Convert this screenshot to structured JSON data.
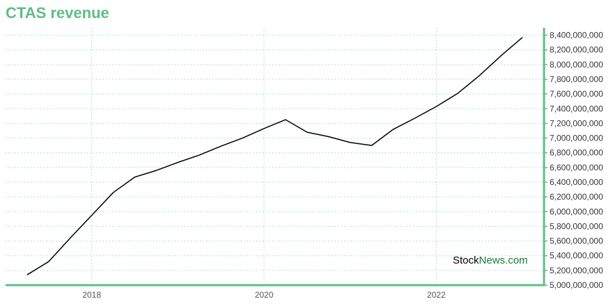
{
  "header": {
    "title": "CTAS revenue"
  },
  "watermark": {
    "part1": "Stock",
    "part2": "News",
    "part3": ".com"
  },
  "colors": {
    "accent": "#5cbf85",
    "line": "#000000",
    "grid": "#9fd9bd",
    "watermark_green": "#1a7a3a"
  },
  "chart_data": {
    "type": "line",
    "title": "CTAS revenue",
    "xlabel": "",
    "ylabel": "",
    "ylim": [
      5000000000,
      8500000000
    ],
    "xlim": [
      2017.0,
      2023.25
    ],
    "grid": true,
    "y_ticks": [
      5000000000,
      5200000000,
      5400000000,
      5600000000,
      5800000000,
      6000000000,
      6200000000,
      6400000000,
      6600000000,
      6800000000,
      7000000000,
      7200000000,
      7400000000,
      7600000000,
      7800000000,
      8000000000,
      8200000000,
      8400000000
    ],
    "y_tick_labels": [
      "5,000,000,000",
      "5,200,000,000",
      "5,400,000,000",
      "5,600,000,000",
      "5,800,000,000",
      "6,000,000,000",
      "6,200,000,000",
      "6,400,000,000",
      "6,600,000,000",
      "6,800,000,000",
      "7,000,000,000",
      "7,200,000,000",
      "7,400,000,000",
      "7,600,000,000",
      "7,800,000,000",
      "8,000,000,000",
      "8,200,000,000",
      "8,400,000,000"
    ],
    "x_ticks": [
      2018,
      2020,
      2022
    ],
    "x_tick_labels": [
      "2018",
      "2020",
      "2022"
    ],
    "series": [
      {
        "name": "",
        "x": [
          2017.25,
          2017.5,
          2017.75,
          2018.0,
          2018.25,
          2018.5,
          2018.75,
          2019.0,
          2019.25,
          2019.5,
          2019.75,
          2020.0,
          2020.25,
          2020.5,
          2020.75,
          2021.0,
          2021.25,
          2021.5,
          2021.75,
          2022.0,
          2022.25,
          2022.5,
          2022.75,
          2023.0
        ],
        "values": [
          5140000000,
          5320000000,
          5640000000,
          5950000000,
          6260000000,
          6470000000,
          6560000000,
          6670000000,
          6770000000,
          6890000000,
          7000000000,
          7130000000,
          7250000000,
          7080000000,
          7020000000,
          6940000000,
          6900000000,
          7120000000,
          7270000000,
          7430000000,
          7610000000,
          7850000000,
          8120000000,
          8370000000
        ]
      }
    ]
  }
}
